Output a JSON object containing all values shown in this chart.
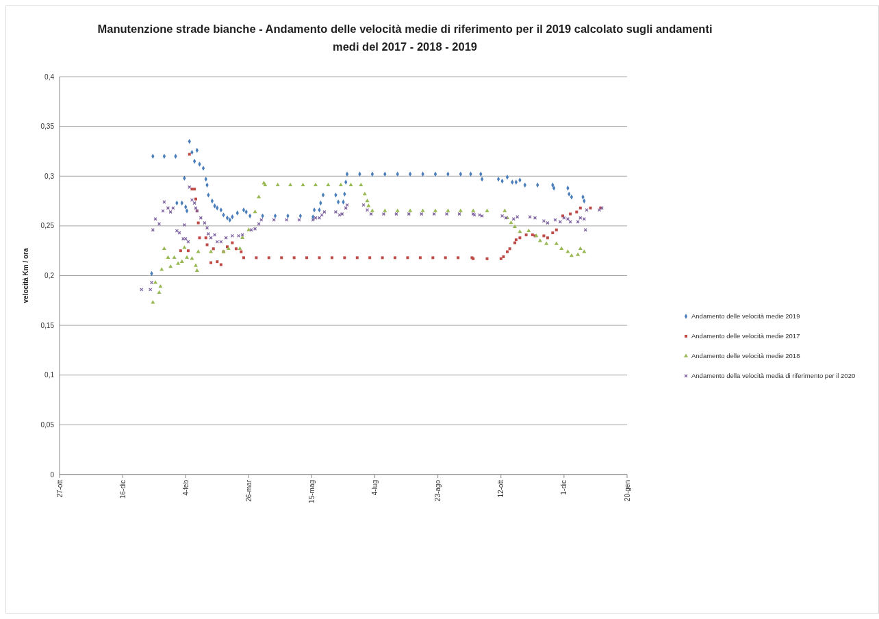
{
  "chart_data": {
    "type": "scatter",
    "title": "Manutenzione strade bianche - Andamento delle velocità medie di riferimento per il 2019 calcolato sugli andamenti medi del 2017 - 2018 - 2019",
    "ylabel": "velocità Km / ora",
    "xlim": [
      "2018-10-27",
      "2020-01-20"
    ],
    "xticks": [
      {
        "value": "2018-10-27",
        "label": "27-ott"
      },
      {
        "value": "2018-12-16",
        "label": "16-dic"
      },
      {
        "value": "2019-02-04",
        "label": "4-feb"
      },
      {
        "value": "2019-03-26",
        "label": "26-mar"
      },
      {
        "value": "2019-05-15",
        "label": "15-mag"
      },
      {
        "value": "2019-07-04",
        "label": "4-lug"
      },
      {
        "value": "2019-08-23",
        "label": "23-ago"
      },
      {
        "value": "2019-10-12",
        "label": "12-ott"
      },
      {
        "value": "2019-12-01",
        "label": "1-dic"
      },
      {
        "value": "2020-01-20",
        "label": "20-gen"
      }
    ],
    "ylim": [
      0,
      0.4
    ],
    "yticks": [
      0,
      {
        "value": 0.05,
        "label": "0,05"
      },
      {
        "value": 0.1,
        "label": "0,1"
      },
      {
        "value": 0.15,
        "label": "0,15"
      },
      {
        "value": 0.2,
        "label": "0,2"
      },
      {
        "value": 0.25,
        "label": "0,25"
      },
      {
        "value": 0.3,
        "label": "0,3"
      },
      {
        "value": 0.35,
        "label": "0,35"
      },
      {
        "value": 0.4,
        "label": "0,4"
      }
    ],
    "grid": "y",
    "legend": "right",
    "series": [
      {
        "name": "Andamento delle velocità medie 2019",
        "color": "#4a7ebb",
        "marker": "diamond",
        "x": [
          "2019-01-08",
          "2019-01-09",
          "2019-01-18",
          "2019-01-27",
          "2019-01-28",
          "2019-02-01",
          "2019-02-03",
          "2019-02-04",
          "2019-02-05",
          "2019-02-07",
          "2019-02-09",
          "2019-02-11",
          "2019-02-13",
          "2019-02-15",
          "2019-02-18",
          "2019-02-20",
          "2019-02-21",
          "2019-02-22",
          "2019-02-25",
          "2019-02-27",
          "2019-03-01",
          "2019-03-04",
          "2019-03-06",
          "2019-03-09",
          "2019-03-11",
          "2019-03-13",
          "2019-03-17",
          "2019-03-22",
          "2019-03-24",
          "2019-03-27",
          "2019-04-06",
          "2019-04-16",
          "2019-04-26",
          "2019-05-06",
          "2019-05-16",
          "2019-05-17",
          "2019-05-21",
          "2019-05-22",
          "2019-05-24",
          "2019-06-03",
          "2019-06-05",
          "2019-06-09",
          "2019-06-10",
          "2019-06-11",
          "2019-06-12",
          "2019-06-22",
          "2019-07-02",
          "2019-07-12",
          "2019-07-22",
          "2019-08-01",
          "2019-08-11",
          "2019-08-21",
          "2019-08-31",
          "2019-09-10",
          "2019-09-18",
          "2019-09-26",
          "2019-09-27",
          "2019-10-10",
          "2019-10-13",
          "2019-10-17",
          "2019-10-21",
          "2019-10-24",
          "2019-10-27",
          "2019-10-31",
          "2019-11-10",
          "2019-11-22",
          "2019-11-23",
          "2019-12-04",
          "2019-12-05",
          "2019-12-07",
          "2019-12-16",
          "2019-12-17"
        ],
        "values": [
          0.202,
          0.32,
          0.32,
          0.32,
          0.273,
          0.273,
          0.298,
          0.269,
          0.265,
          0.335,
          0.324,
          0.315,
          0.326,
          0.312,
          0.308,
          0.297,
          0.291,
          0.281,
          0.275,
          0.27,
          0.268,
          0.266,
          0.261,
          0.258,
          0.256,
          0.259,
          0.263,
          0.266,
          0.264,
          0.26,
          0.26,
          0.26,
          0.26,
          0.26,
          0.259,
          0.266,
          0.266,
          0.273,
          0.281,
          0.281,
          0.274,
          0.274,
          0.282,
          0.294,
          0.302,
          0.302,
          0.302,
          0.302,
          0.302,
          0.302,
          0.302,
          0.302,
          0.302,
          0.302,
          0.302,
          0.302,
          0.297,
          0.297,
          0.295,
          0.299,
          0.294,
          0.294,
          0.296,
          0.291,
          0.291,
          0.291,
          0.288,
          0.288,
          0.282,
          0.279,
          0.279,
          0.275
        ]
      },
      {
        "name": "Andamento delle velocità medie 2017",
        "color": "#be4b48",
        "marker": "square",
        "x": [
          "2019-01-31",
          "2019-02-06",
          "2019-02-07",
          "2019-02-09",
          "2019-02-11",
          "2019-02-12",
          "2019-02-13",
          "2019-02-14",
          "2019-02-15",
          "2019-02-20",
          "2019-02-21",
          "2019-02-24",
          "2019-02-26",
          "2019-03-01",
          "2019-03-04",
          "2019-03-06",
          "2019-03-09",
          "2019-03-13",
          "2019-03-16",
          "2019-03-20",
          "2019-03-22",
          "2019-04-01",
          "2019-04-11",
          "2019-04-21",
          "2019-05-01",
          "2019-05-11",
          "2019-05-21",
          "2019-05-31",
          "2019-06-10",
          "2019-06-20",
          "2019-06-30",
          "2019-07-10",
          "2019-07-20",
          "2019-07-30",
          "2019-08-09",
          "2019-08-19",
          "2019-08-29",
          "2019-09-08",
          "2019-09-19",
          "2019-09-20",
          "2019-10-01",
          "2019-10-12",
          "2019-10-14",
          "2019-10-17",
          "2019-10-19",
          "2019-10-23",
          "2019-10-24",
          "2019-10-27",
          "2019-11-01",
          "2019-11-06",
          "2019-11-08",
          "2019-11-15",
          "2019-11-18",
          "2019-11-22",
          "2019-11-25",
          "2019-11-30",
          "2019-12-06",
          "2019-12-11",
          "2019-12-14",
          "2019-12-22",
          "2019-12-30"
        ],
        "values": [
          0.225,
          0.225,
          0.322,
          0.287,
          0.287,
          0.277,
          0.265,
          0.253,
          0.238,
          0.238,
          0.231,
          0.213,
          0.227,
          0.214,
          0.211,
          0.224,
          0.229,
          0.233,
          0.227,
          0.224,
          0.218,
          0.218,
          0.218,
          0.218,
          0.218,
          0.218,
          0.218,
          0.218,
          0.218,
          0.218,
          0.218,
          0.218,
          0.218,
          0.218,
          0.218,
          0.218,
          0.218,
          0.218,
          0.218,
          0.217,
          0.217,
          0.217,
          0.219,
          0.224,
          0.227,
          0.233,
          0.236,
          0.238,
          0.241,
          0.241,
          0.24,
          0.24,
          0.238,
          0.243,
          0.246,
          0.26,
          0.262,
          0.264,
          0.268,
          0.268,
          0.268
        ]
      },
      {
        "name": "Andamento delle velocità medie 2018",
        "color": "#98b954",
        "marker": "triangle",
        "x": [
          "2019-01-09",
          "2019-01-11",
          "2019-01-14",
          "2019-01-15",
          "2019-01-16",
          "2019-01-18",
          "2019-01-21",
          "2019-01-23",
          "2019-01-26",
          "2019-01-29",
          "2019-02-01",
          "2019-02-03",
          "2019-02-05",
          "2019-02-09",
          "2019-02-12",
          "2019-02-13",
          "2019-02-14",
          "2019-02-24",
          "2019-03-06",
          "2019-03-10",
          "2019-03-19",
          "2019-03-21",
          "2019-03-26",
          "2019-03-31",
          "2019-04-03",
          "2019-04-07",
          "2019-04-08",
          "2019-04-18",
          "2019-04-28",
          "2019-05-08",
          "2019-05-18",
          "2019-05-28",
          "2019-06-07",
          "2019-06-15",
          "2019-06-23",
          "2019-06-26",
          "2019-06-28",
          "2019-06-29",
          "2019-07-02",
          "2019-07-12",
          "2019-07-22",
          "2019-08-01",
          "2019-08-11",
          "2019-08-21",
          "2019-08-31",
          "2019-09-10",
          "2019-09-20",
          "2019-10-01",
          "2019-10-15",
          "2019-10-17",
          "2019-10-20",
          "2019-10-23",
          "2019-10-27",
          "2019-11-03",
          "2019-11-09",
          "2019-11-12",
          "2019-11-17",
          "2019-11-25",
          "2019-11-29",
          "2019-12-04",
          "2019-12-07",
          "2019-12-12",
          "2019-12-14",
          "2019-12-17"
        ],
        "values": [
          0.173,
          0.193,
          0.183,
          0.189,
          0.206,
          0.227,
          0.218,
          0.209,
          0.218,
          0.212,
          0.214,
          0.228,
          0.218,
          0.217,
          0.21,
          0.205,
          0.224,
          0.224,
          0.224,
          0.227,
          0.227,
          0.238,
          0.246,
          0.264,
          0.279,
          0.293,
          0.291,
          0.291,
          0.291,
          0.291,
          0.291,
          0.291,
          0.291,
          0.291,
          0.291,
          0.282,
          0.275,
          0.27,
          0.265,
          0.265,
          0.265,
          0.265,
          0.265,
          0.265,
          0.265,
          0.265,
          0.265,
          0.265,
          0.265,
          0.258,
          0.253,
          0.249,
          0.244,
          0.245,
          0.24,
          0.235,
          0.232,
          0.232,
          0.227,
          0.224,
          0.22,
          0.221,
          0.227,
          0.224
        ]
      },
      {
        "name": "Andamento della velocità media di riferimento per il 2020",
        "color": "#7d60a0",
        "marker": "cross",
        "x": [
          "2018-12-31",
          "2019-01-07",
          "2019-01-08",
          "2019-01-09",
          "2019-01-11",
          "2019-01-14",
          "2019-01-17",
          "2019-01-18",
          "2019-01-21",
          "2019-01-23",
          "2019-01-25",
          "2019-01-28",
          "2019-01-30",
          "2019-02-02",
          "2019-02-03",
          "2019-02-04",
          "2019-02-06",
          "2019-02-07",
          "2019-02-09",
          "2019-02-11",
          "2019-02-12",
          "2019-02-13",
          "2019-02-16",
          "2019-02-19",
          "2019-02-21",
          "2019-02-22",
          "2019-02-24",
          "2019-02-27",
          "2019-03-01",
          "2019-03-04",
          "2019-03-08",
          "2019-03-13",
          "2019-03-18",
          "2019-03-21",
          "2019-03-28",
          "2019-03-31",
          "2019-04-03",
          "2019-04-05",
          "2019-04-15",
          "2019-04-25",
          "2019-05-05",
          "2019-05-16",
          "2019-05-18",
          "2019-05-21",
          "2019-05-23",
          "2019-05-25",
          "2019-06-03",
          "2019-06-06",
          "2019-06-08",
          "2019-06-11",
          "2019-06-12",
          "2019-06-25",
          "2019-06-28",
          "2019-07-01",
          "2019-07-11",
          "2019-07-21",
          "2019-07-31",
          "2019-08-10",
          "2019-08-20",
          "2019-08-30",
          "2019-09-09",
          "2019-09-20",
          "2019-09-21",
          "2019-09-25",
          "2019-09-27",
          "2019-10-13",
          "2019-10-16",
          "2019-10-22",
          "2019-10-25",
          "2019-11-04",
          "2019-11-08",
          "2019-11-15",
          "2019-11-18",
          "2019-11-24",
          "2019-11-28",
          "2019-12-01",
          "2019-12-04",
          "2019-12-06",
          "2019-12-12",
          "2019-12-14",
          "2019-12-17",
          "2019-12-18",
          "2019-12-19",
          "2019-12-29",
          "2019-12-31"
        ],
        "values": [
          0.186,
          0.186,
          0.193,
          0.246,
          0.257,
          0.252,
          0.265,
          0.274,
          0.268,
          0.264,
          0.268,
          0.245,
          0.243,
          0.237,
          0.251,
          0.237,
          0.234,
          0.289,
          0.276,
          0.273,
          0.268,
          0.265,
          0.258,
          0.253,
          0.248,
          0.242,
          0.238,
          0.241,
          0.234,
          0.234,
          0.238,
          0.24,
          0.24,
          0.241,
          0.246,
          0.247,
          0.252,
          0.256,
          0.256,
          0.256,
          0.256,
          0.256,
          0.258,
          0.258,
          0.261,
          0.264,
          0.264,
          0.261,
          0.262,
          0.268,
          0.271,
          0.271,
          0.266,
          0.262,
          0.262,
          0.262,
          0.262,
          0.262,
          0.262,
          0.262,
          0.262,
          0.262,
          0.261,
          0.261,
          0.26,
          0.26,
          0.258,
          0.257,
          0.259,
          0.259,
          0.258,
          0.255,
          0.253,
          0.256,
          0.254,
          0.258,
          0.257,
          0.254,
          0.254,
          0.258,
          0.257,
          0.246,
          0.266,
          0.266,
          0.268
        ]
      }
    ]
  }
}
